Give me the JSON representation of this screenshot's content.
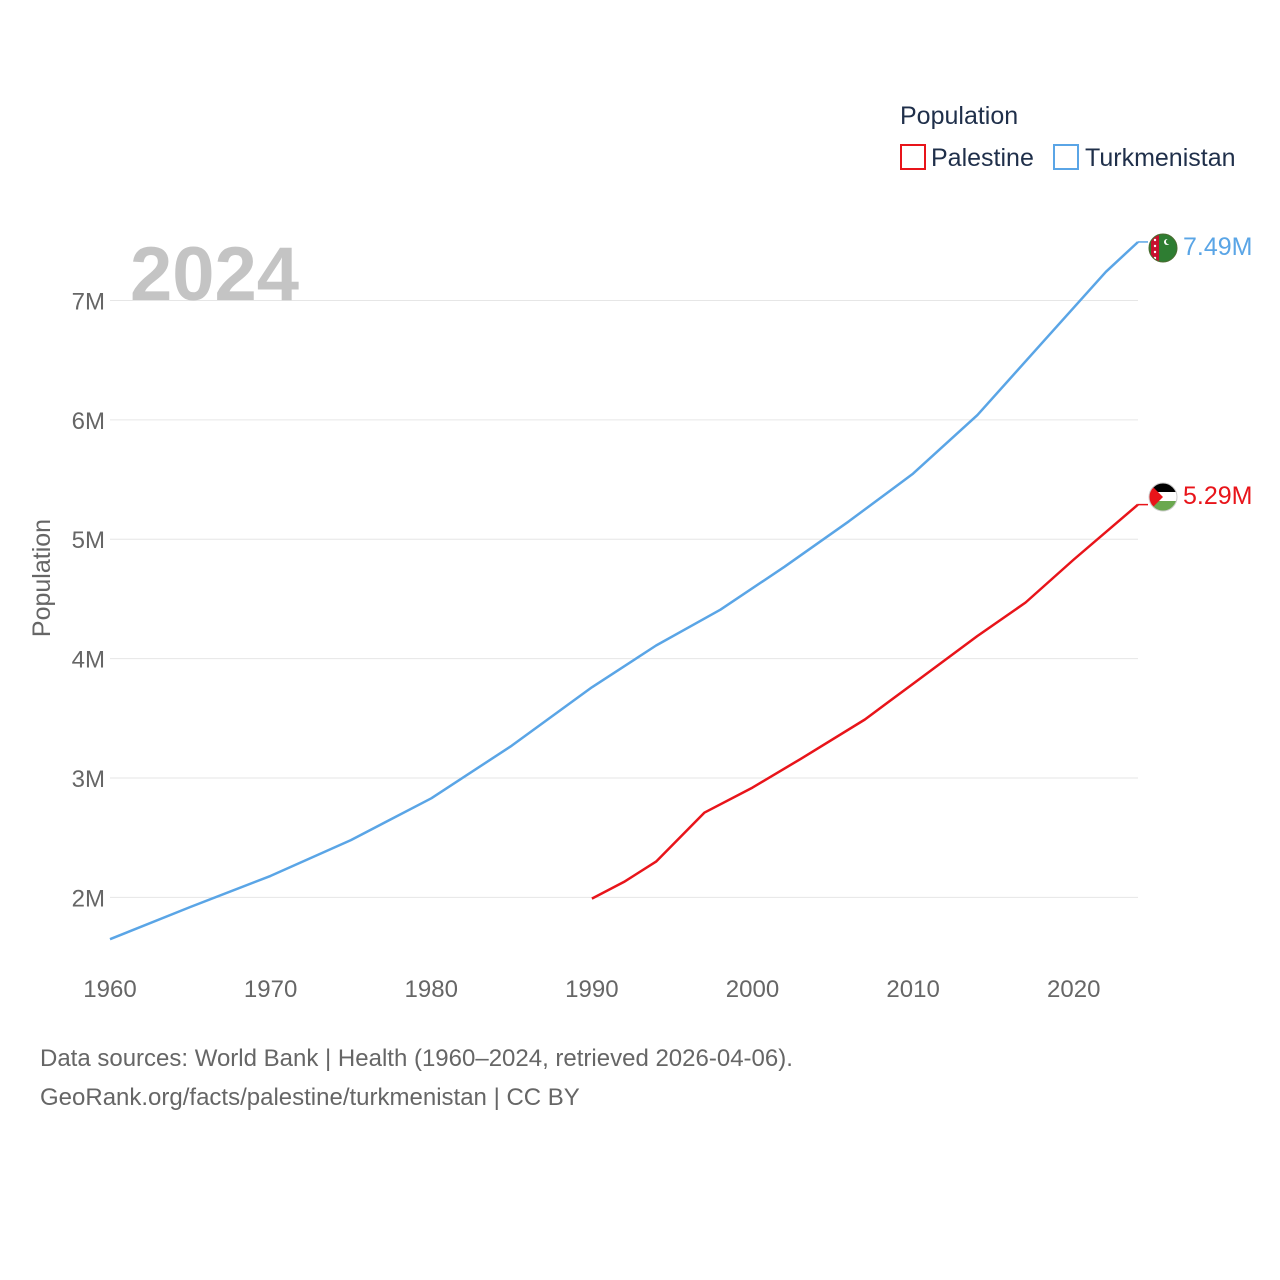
{
  "chart_data": {
    "type": "line",
    "current_year_label": "2024",
    "legend": {
      "title": "Population"
    },
    "ylabel": "Population",
    "xlim": [
      1960,
      2024
    ],
    "ylim": [
      1300000,
      7900000
    ],
    "x_ticks": [
      1960,
      1970,
      1980,
      1990,
      2000,
      2010,
      2020
    ],
    "x_tick_labels": [
      "1960",
      "1970",
      "1980",
      "1990",
      "2000",
      "2010",
      "2020"
    ],
    "y_ticks": [
      2000000,
      3000000,
      4000000,
      5000000,
      6000000,
      7000000
    ],
    "y_tick_labels": [
      "2M",
      "3M",
      "4M",
      "5M",
      "6M",
      "7M"
    ],
    "series": [
      {
        "name": "Palestine",
        "color": "#e8141a",
        "end_label": "5.29M",
        "flag": "palestine-flag",
        "points": [
          [
            1990,
            1990000
          ],
          [
            1992,
            2130000
          ],
          [
            1994,
            2300000
          ],
          [
            1997,
            2710000
          ],
          [
            2000,
            2920000
          ],
          [
            2003,
            3160000
          ],
          [
            2007,
            3490000
          ],
          [
            2010,
            3790000
          ],
          [
            2014,
            4190000
          ],
          [
            2017,
            4470000
          ],
          [
            2020,
            4830000
          ],
          [
            2024,
            5290000
          ]
        ]
      },
      {
        "name": "Turkmenistan",
        "color": "#5aa5e6",
        "end_label": "7.49M",
        "flag": "turkmenistan-flag",
        "points": [
          [
            1960,
            1650000
          ],
          [
            1965,
            1920000
          ],
          [
            1970,
            2180000
          ],
          [
            1975,
            2480000
          ],
          [
            1980,
            2830000
          ],
          [
            1985,
            3270000
          ],
          [
            1990,
            3760000
          ],
          [
            1994,
            4110000
          ],
          [
            1998,
            4410000
          ],
          [
            2002,
            4770000
          ],
          [
            2006,
            5150000
          ],
          [
            2010,
            5550000
          ],
          [
            2014,
            6040000
          ],
          [
            2018,
            6640000
          ],
          [
            2022,
            7240000
          ],
          [
            2024,
            7490000
          ]
        ]
      }
    ]
  },
  "source": {
    "line1": "Data sources: World Bank | Health (1960–2024, retrieved 2026-04-06).",
    "line2": "GeoRank.org/facts/palestine/turkmenistan | CC BY"
  }
}
